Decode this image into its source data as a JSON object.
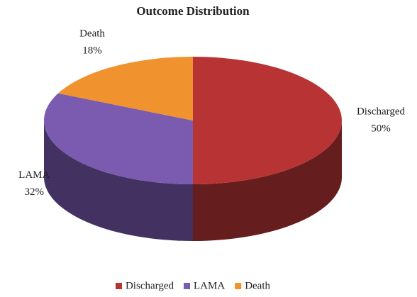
{
  "chart_data": {
    "type": "pie",
    "title": "Outcome Distribution",
    "categories": [
      "Discharged",
      "LAMA",
      "Death"
    ],
    "values": [
      50,
      32,
      18
    ],
    "value_labels": [
      "50%",
      "32%",
      "18%"
    ],
    "colors": [
      "#b83434",
      "#7a5bb0",
      "#f0922e"
    ],
    "legend": "bottom"
  }
}
